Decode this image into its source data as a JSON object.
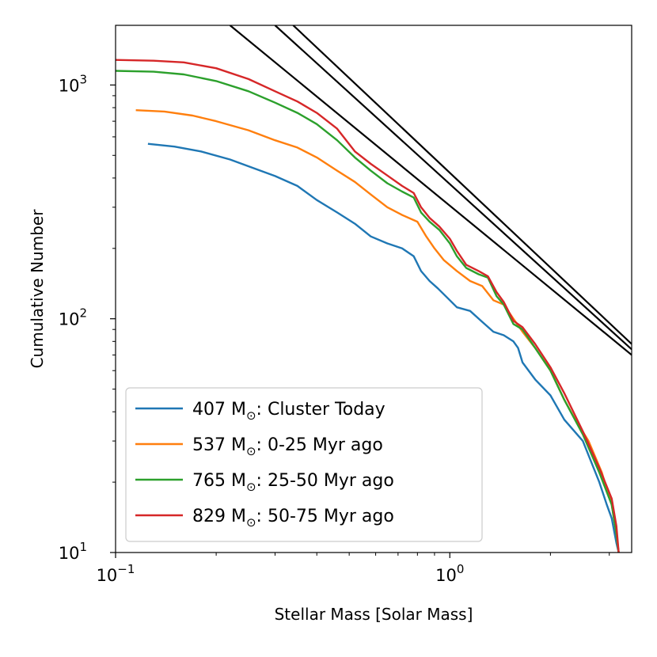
{
  "chart_data": {
    "type": "line",
    "xscale": "log",
    "yscale": "log",
    "xlabel": "Stellar Mass [Solar Mass]",
    "ylabel": "Cumulative Number",
    "xlim": [
      0.1,
      3.5
    ],
    "ylim": [
      10,
      1800
    ],
    "x_ticks": [
      {
        "value": 0.1,
        "base": "10",
        "exp": "−1"
      },
      {
        "value": 1,
        "base": "10",
        "exp": "0"
      }
    ],
    "y_ticks": [
      {
        "value": 10,
        "base": "10",
        "exp": "1"
      },
      {
        "value": 100,
        "base": "10",
        "exp": "2"
      },
      {
        "value": 1000,
        "base": "10",
        "exp": "3"
      }
    ],
    "legend_position": "lower-left",
    "series": [
      {
        "name": "407 M⊙: Cluster Today",
        "mass": "407",
        "label_rest": ": Cluster Today",
        "color": "#1f77b4",
        "points": [
          [
            0.125,
            560
          ],
          [
            0.15,
            545
          ],
          [
            0.18,
            520
          ],
          [
            0.22,
            480
          ],
          [
            0.26,
            440
          ],
          [
            0.3,
            408
          ],
          [
            0.35,
            370
          ],
          [
            0.4,
            322
          ],
          [
            0.46,
            285
          ],
          [
            0.52,
            255
          ],
          [
            0.58,
            225
          ],
          [
            0.65,
            210
          ],
          [
            0.72,
            200
          ],
          [
            0.78,
            185
          ],
          [
            0.82,
            160
          ],
          [
            0.87,
            145
          ],
          [
            0.92,
            135
          ],
          [
            1.0,
            120
          ],
          [
            1.05,
            112
          ],
          [
            1.15,
            108
          ],
          [
            1.25,
            97
          ],
          [
            1.35,
            88
          ],
          [
            1.45,
            85
          ],
          [
            1.55,
            80
          ],
          [
            1.6,
            75
          ],
          [
            1.65,
            65
          ],
          [
            1.8,
            55
          ],
          [
            2.0,
            47
          ],
          [
            2.2,
            37
          ],
          [
            2.5,
            30
          ],
          [
            2.8,
            20
          ],
          [
            2.95,
            16
          ],
          [
            3.05,
            14
          ],
          [
            3.15,
            11
          ],
          [
            3.2,
            10
          ]
        ]
      },
      {
        "name": "537 M⊙: 0-25 Myr ago",
        "mass": "537",
        "label_rest": ": 0-25 Myr ago",
        "color": "#ff7f0e",
        "points": [
          [
            0.115,
            780
          ],
          [
            0.14,
            770
          ],
          [
            0.17,
            740
          ],
          [
            0.2,
            700
          ],
          [
            0.25,
            640
          ],
          [
            0.3,
            580
          ],
          [
            0.35,
            540
          ],
          [
            0.4,
            490
          ],
          [
            0.46,
            430
          ],
          [
            0.52,
            385
          ],
          [
            0.58,
            340
          ],
          [
            0.65,
            300
          ],
          [
            0.72,
            278
          ],
          [
            0.8,
            260
          ],
          [
            0.85,
            225
          ],
          [
            0.9,
            200
          ],
          [
            0.96,
            178
          ],
          [
            1.05,
            160
          ],
          [
            1.15,
            145
          ],
          [
            1.25,
            138
          ],
          [
            1.35,
            120
          ],
          [
            1.45,
            115
          ],
          [
            1.55,
            100
          ],
          [
            1.65,
            88
          ],
          [
            1.8,
            75
          ],
          [
            2.0,
            60
          ],
          [
            2.2,
            45
          ],
          [
            2.35,
            38
          ],
          [
            2.6,
            30
          ],
          [
            2.85,
            22
          ],
          [
            3.05,
            16
          ],
          [
            3.15,
            12
          ],
          [
            3.2,
            10
          ]
        ]
      },
      {
        "name": "765 M⊙: 25-50 Myr ago",
        "mass": "765",
        "label_rest": ": 25-50 Myr ago",
        "color": "#2ca02c",
        "points": [
          [
            0.1,
            1150
          ],
          [
            0.13,
            1140
          ],
          [
            0.16,
            1110
          ],
          [
            0.2,
            1040
          ],
          [
            0.25,
            940
          ],
          [
            0.3,
            840
          ],
          [
            0.35,
            760
          ],
          [
            0.4,
            680
          ],
          [
            0.46,
            580
          ],
          [
            0.52,
            490
          ],
          [
            0.58,
            430
          ],
          [
            0.65,
            380
          ],
          [
            0.72,
            350
          ],
          [
            0.78,
            330
          ],
          [
            0.82,
            285
          ],
          [
            0.87,
            260
          ],
          [
            0.93,
            240
          ],
          [
            1.0,
            210
          ],
          [
            1.05,
            185
          ],
          [
            1.12,
            165
          ],
          [
            1.22,
            155
          ],
          [
            1.3,
            150
          ],
          [
            1.38,
            125
          ],
          [
            1.45,
            115
          ],
          [
            1.55,
            95
          ],
          [
            1.65,
            90
          ],
          [
            1.8,
            75
          ],
          [
            2.0,
            60
          ],
          [
            2.2,
            45
          ],
          [
            2.5,
            32
          ],
          [
            2.8,
            22
          ],
          [
            3.05,
            16
          ],
          [
            3.15,
            12
          ],
          [
            3.2,
            10
          ]
        ]
      },
      {
        "name": "829 M⊙: 50-75 Myr ago",
        "mass": "829",
        "label_rest": ": 50-75 Myr ago",
        "color": "#d62728",
        "points": [
          [
            0.1,
            1280
          ],
          [
            0.13,
            1270
          ],
          [
            0.16,
            1250
          ],
          [
            0.2,
            1180
          ],
          [
            0.25,
            1060
          ],
          [
            0.3,
            940
          ],
          [
            0.35,
            850
          ],
          [
            0.4,
            760
          ],
          [
            0.46,
            650
          ],
          [
            0.52,
            520
          ],
          [
            0.58,
            460
          ],
          [
            0.65,
            410
          ],
          [
            0.72,
            370
          ],
          [
            0.78,
            345
          ],
          [
            0.82,
            300
          ],
          [
            0.87,
            270
          ],
          [
            0.93,
            248
          ],
          [
            1.0,
            220
          ],
          [
            1.05,
            195
          ],
          [
            1.12,
            170
          ],
          [
            1.22,
            160
          ],
          [
            1.3,
            152
          ],
          [
            1.38,
            130
          ],
          [
            1.45,
            118
          ],
          [
            1.55,
            98
          ],
          [
            1.65,
            92
          ],
          [
            1.8,
            78
          ],
          [
            2.0,
            62
          ],
          [
            2.2,
            48
          ],
          [
            2.5,
            33
          ],
          [
            2.8,
            23
          ],
          [
            3.05,
            17
          ],
          [
            3.15,
            13
          ],
          [
            3.2,
            10
          ]
        ]
      }
    ],
    "reference_lines": [
      {
        "name": "power-law-1",
        "color": "#000000",
        "points": [
          [
            0.22,
            1800
          ],
          [
            3.5,
            70
          ]
        ]
      },
      {
        "name": "power-law-2",
        "color": "#000000",
        "points": [
          [
            0.3,
            1800
          ],
          [
            3.5,
            74
          ]
        ]
      },
      {
        "name": "power-law-3",
        "color": "#000000",
        "points": [
          [
            0.34,
            1800
          ],
          [
            3.5,
            78
          ]
        ]
      }
    ]
  }
}
